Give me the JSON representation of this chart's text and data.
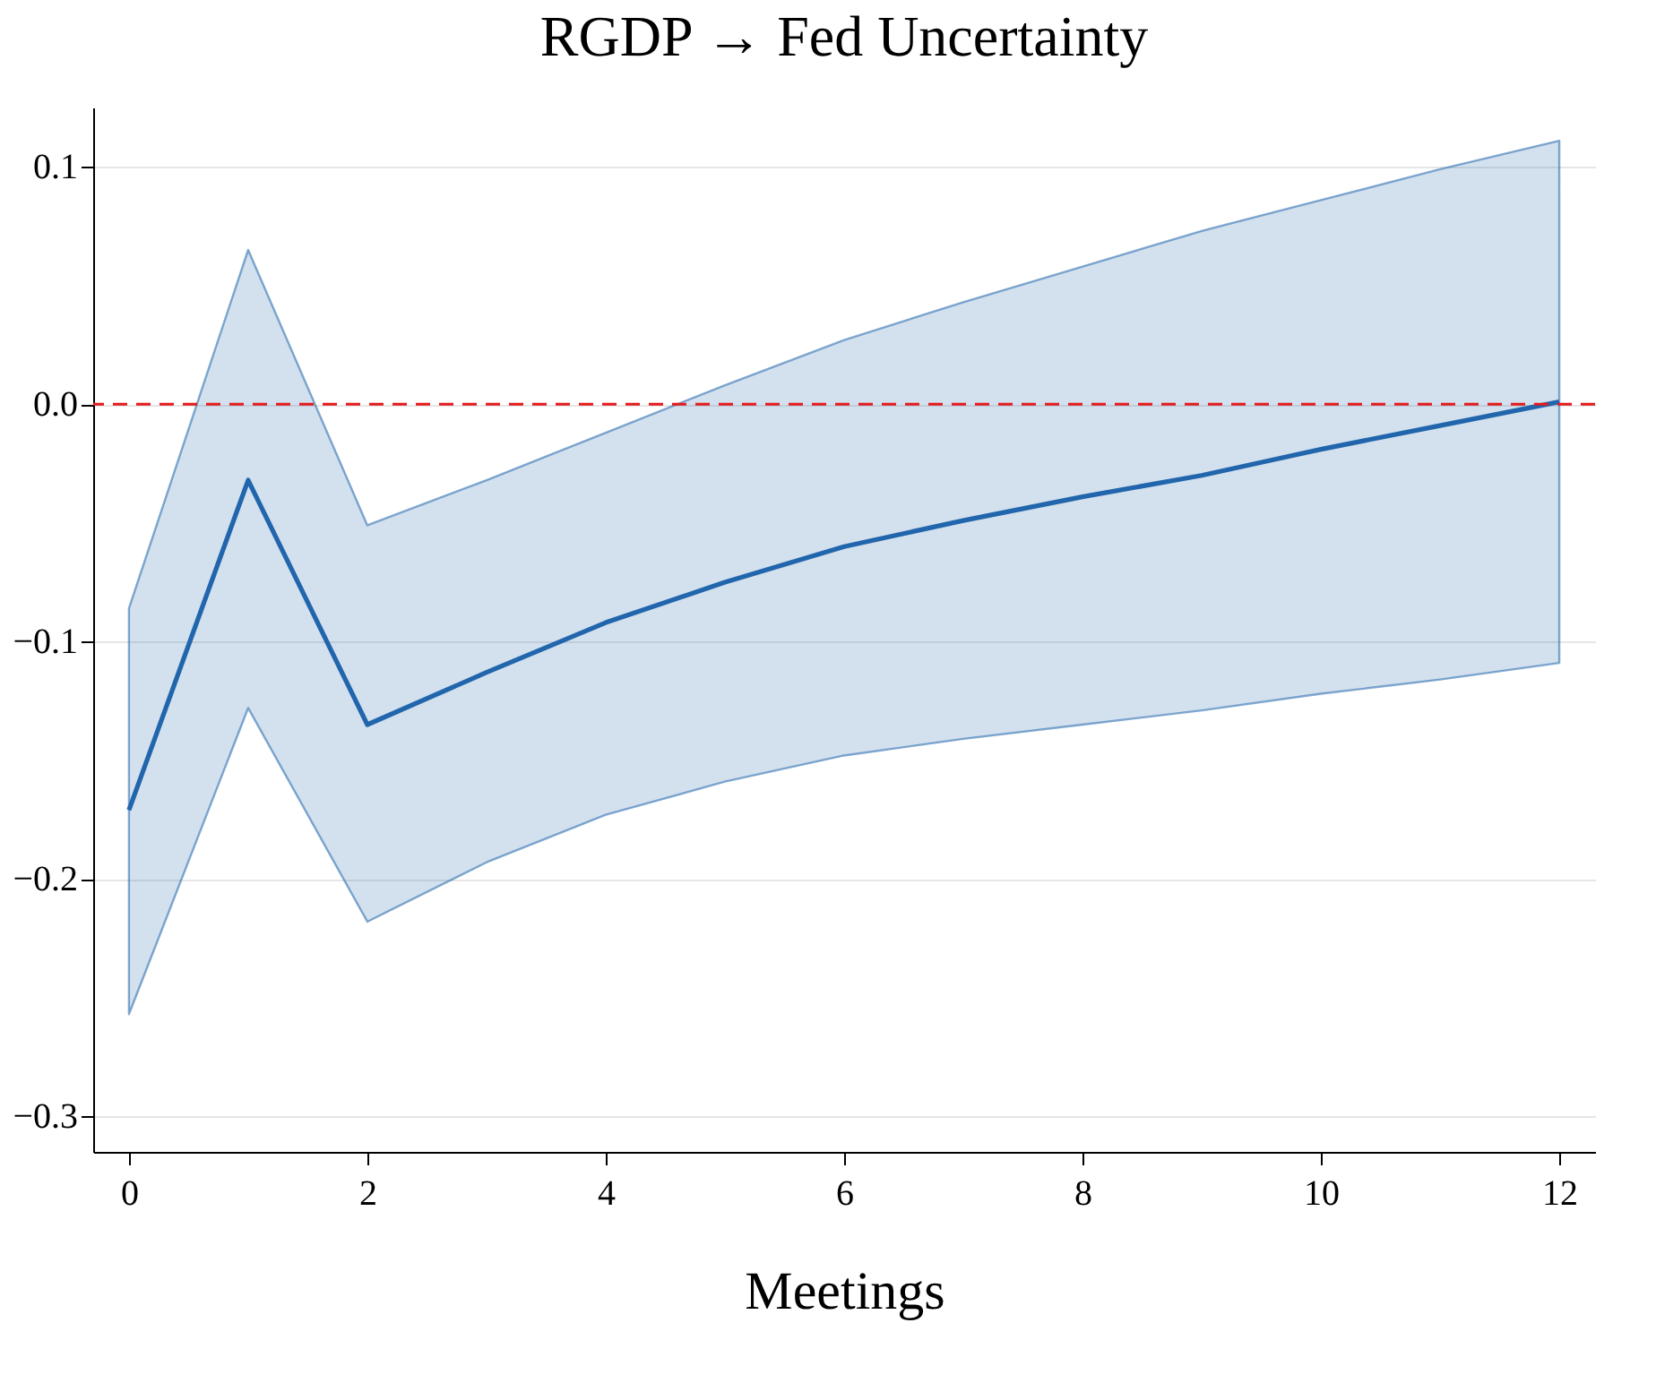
{
  "chart_data": {
    "type": "line",
    "title": "RGDP → Fed Uncertainty",
    "xlabel": "Meetings",
    "x": [
      0,
      1,
      2,
      3,
      4,
      5,
      6,
      7,
      8,
      9,
      10,
      11,
      12
    ],
    "series": [
      {
        "color": "#2166ac",
        "values": [
          -0.171,
          -0.032,
          -0.135,
          -0.113,
          -0.092,
          -0.075,
          -0.06,
          -0.049,
          -0.039,
          -0.03,
          -0.019,
          -0.009,
          0.001
        ],
        "lower": [
          -0.257,
          -0.128,
          -0.218,
          -0.193,
          -0.173,
          -0.159,
          -0.148,
          -0.141,
          -0.135,
          -0.129,
          -0.122,
          -0.116,
          -0.109
        ],
        "upper": [
          -0.086,
          0.065,
          -0.051,
          -0.032,
          -0.012,
          0.008,
          0.027,
          0.043,
          0.058,
          0.073,
          0.086,
          0.099,
          0.111
        ]
      }
    ],
    "xlim": [
      -0.3,
      12.3
    ],
    "xticks": [
      0,
      2,
      4,
      6,
      8,
      10,
      12
    ],
    "ylim": [
      -0.315,
      0.125
    ],
    "yticks": [
      {
        "value": -0.3,
        "label": "−0.3"
      },
      {
        "value": -0.2,
        "label": "−0.2"
      },
      {
        "value": -0.1,
        "label": "−0.1"
      },
      {
        "value": 0,
        "label": "0.0"
      },
      {
        "value": 0.1,
        "label": "0.1"
      }
    ],
    "grid": "y",
    "marker": "none",
    "line_style": "solid",
    "ref_lines": [
      {
        "axis": "y",
        "value": 0,
        "color": "#e41a1c",
        "line_style": "dashed"
      }
    ]
  }
}
